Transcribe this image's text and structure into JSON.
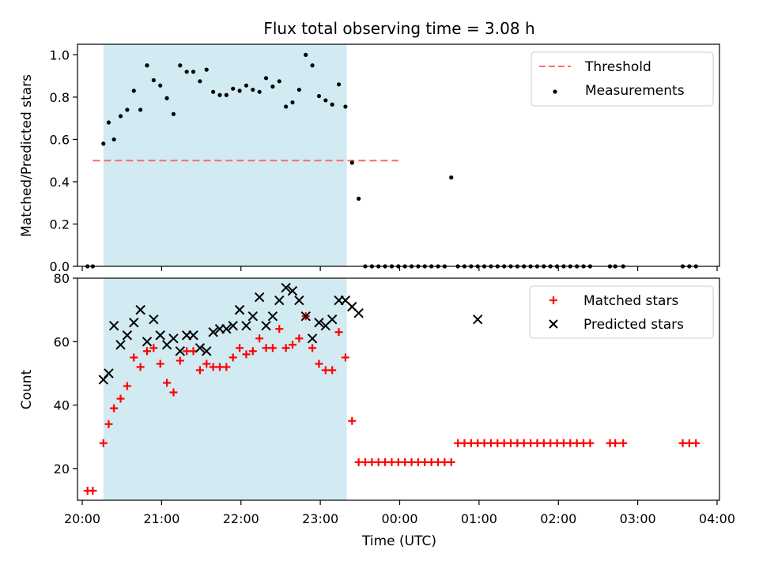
{
  "title": "Flux total observing time = 3.08 h",
  "colors": {
    "threshold": "#ff6e6e",
    "measurements": "#000000",
    "matched": "#ff0000",
    "predicted": "#000000",
    "span": "#add8e6"
  },
  "chart_data": [
    {
      "type": "scatter",
      "panel": "top",
      "title": "Flux total observing time = 3.08 h",
      "xlabel": "",
      "ylabel": "Matched/Predicted stars",
      "xlim": [
        "20:00",
        "04:00"
      ],
      "ylim": [
        0,
        1.05
      ],
      "yticks": [
        "0.0",
        "0.2",
        "0.4",
        "0.6",
        "0.8",
        "1.0"
      ],
      "shaded_span": [
        "20:16",
        "23:20"
      ],
      "legend_position": "upper right",
      "legend": [
        "Threshold",
        "Measurements"
      ],
      "threshold": {
        "name": "Threshold",
        "value": 0.5,
        "x_range": [
          "20:08",
          "23:59"
        ],
        "style": "dashed"
      },
      "series": [
        {
          "name": "Measurements",
          "marker": "dot",
          "x": [
            "20:04",
            "20:08",
            "20:16",
            "20:20",
            "20:24",
            "20:29",
            "20:34",
            "20:39",
            "20:44",
            "20:49",
            "20:54",
            "20:59",
            "21:04",
            "21:09",
            "21:14",
            "21:19",
            "21:24",
            "21:29",
            "21:34",
            "21:39",
            "21:44",
            "21:49",
            "21:54",
            "21:59",
            "22:04",
            "22:09",
            "22:14",
            "22:19",
            "22:24",
            "22:29",
            "22:34",
            "22:39",
            "22:44",
            "22:49",
            "22:54",
            "22:59",
            "23:04",
            "23:09",
            "23:14",
            "23:19",
            "23:24",
            "23:29",
            "23:34",
            "23:39",
            "23:44",
            "23:49",
            "23:54",
            "23:59",
            "00:04",
            "00:09",
            "00:14",
            "00:19",
            "00:24",
            "00:29",
            "00:34",
            "00:39",
            "00:44",
            "00:49",
            "00:54",
            "00:59",
            "01:04",
            "01:09",
            "01:14",
            "01:19",
            "01:24",
            "01:29",
            "01:34",
            "01:39",
            "01:44",
            "01:49",
            "01:54",
            "01:59",
            "02:04",
            "02:09",
            "02:14",
            "02:19",
            "02:24",
            "02:39",
            "02:43",
            "02:49",
            "03:34",
            "03:39",
            "03:44"
          ],
          "y": [
            0,
            0,
            0.58,
            0.68,
            0.6,
            0.71,
            0.74,
            0.83,
            0.74,
            0.95,
            0.88,
            0.855,
            0.795,
            0.72,
            0.95,
            0.92,
            0.92,
            0.875,
            0.93,
            0.825,
            0.81,
            0.81,
            0.84,
            0.83,
            0.855,
            0.835,
            0.825,
            0.89,
            0.85,
            0.875,
            0.755,
            0.775,
            0.835,
            1.0,
            0.95,
            0.805,
            0.785,
            0.765,
            0.86,
            0.755,
            0.49,
            0.32,
            0,
            0,
            0,
            0,
            0,
            0,
            0,
            0,
            0,
            0,
            0,
            0,
            0,
            0.42,
            0,
            0,
            0,
            0,
            0,
            0,
            0,
            0,
            0,
            0,
            0,
            0,
            0,
            0,
            0,
            0,
            0,
            0,
            0,
            0,
            0,
            0,
            0,
            0,
            0,
            0,
            0
          ]
        }
      ]
    },
    {
      "type": "scatter",
      "panel": "bottom",
      "xlabel": "Time (UTC)",
      "ylabel": "Count",
      "xlim": [
        "20:00",
        "04:00"
      ],
      "xticks": [
        "20:00",
        "21:00",
        "22:00",
        "23:00",
        "00:00",
        "01:00",
        "02:00",
        "03:00",
        "04:00"
      ],
      "ylim": [
        10,
        80
      ],
      "yticks": [
        "20",
        "40",
        "60",
        "80"
      ],
      "shaded_span": [
        "20:16",
        "23:20"
      ],
      "legend_position": "upper right",
      "legend": [
        "Matched stars",
        "Predicted stars"
      ],
      "series": [
        {
          "name": "Matched stars",
          "marker": "plus",
          "x": [
            "20:04",
            "20:08",
            "20:16",
            "20:20",
            "20:24",
            "20:29",
            "20:34",
            "20:39",
            "20:44",
            "20:49",
            "20:54",
            "20:59",
            "21:04",
            "21:09",
            "21:14",
            "21:19",
            "21:24",
            "21:29",
            "21:34",
            "21:39",
            "21:44",
            "21:49",
            "21:54",
            "21:59",
            "22:04",
            "22:09",
            "22:14",
            "22:19",
            "22:24",
            "22:29",
            "22:34",
            "22:39",
            "22:44",
            "22:49",
            "22:54",
            "22:59",
            "23:04",
            "23:09",
            "23:14",
            "23:19",
            "23:24",
            "23:29",
            "23:34",
            "23:39",
            "23:44",
            "23:49",
            "23:54",
            "23:59",
            "00:04",
            "00:09",
            "00:14",
            "00:19",
            "00:24",
            "00:29",
            "00:34",
            "00:39",
            "00:44",
            "00:49",
            "00:54",
            "00:59",
            "01:04",
            "01:09",
            "01:14",
            "01:19",
            "01:24",
            "01:29",
            "01:34",
            "01:39",
            "01:44",
            "01:49",
            "01:54",
            "01:59",
            "02:04",
            "02:09",
            "02:14",
            "02:19",
            "02:24",
            "02:39",
            "02:43",
            "02:49",
            "03:34",
            "03:39",
            "03:44"
          ],
          "y": [
            13,
            13,
            28,
            34,
            39,
            42,
            46,
            55,
            52,
            57,
            58,
            53,
            47,
            44,
            54,
            57,
            57,
            51,
            53,
            52,
            52,
            52,
            55,
            58,
            56,
            57,
            61,
            58,
            58,
            64,
            58,
            59,
            61,
            68,
            58,
            53,
            51,
            51,
            63,
            55,
            35,
            22,
            22,
            22,
            22,
            22,
            22,
            22,
            22,
            22,
            22,
            22,
            22,
            22,
            22,
            22,
            28,
            28,
            28,
            28,
            28,
            28,
            28,
            28,
            28,
            28,
            28,
            28,
            28,
            28,
            28,
            28,
            28,
            28,
            28,
            28,
            28,
            28,
            28,
            28,
            28,
            28,
            28
          ]
        },
        {
          "name": "Predicted stars",
          "marker": "x",
          "x": [
            "20:16",
            "20:20",
            "20:24",
            "20:29",
            "20:34",
            "20:39",
            "20:44",
            "20:49",
            "20:54",
            "20:59",
            "21:04",
            "21:09",
            "21:14",
            "21:19",
            "21:24",
            "21:29",
            "21:34",
            "21:39",
            "21:44",
            "21:49",
            "21:54",
            "21:59",
            "22:04",
            "22:09",
            "22:14",
            "22:19",
            "22:24",
            "22:29",
            "22:34",
            "22:39",
            "22:44",
            "22:49",
            "22:54",
            "22:59",
            "23:04",
            "23:09",
            "23:14",
            "23:19",
            "23:24",
            "23:29",
            "00:59"
          ],
          "y": [
            48,
            50,
            65,
            59,
            62,
            66,
            70,
            60,
            67,
            62,
            59,
            61,
            57,
            62,
            62,
            58,
            57,
            63,
            64,
            64,
            65,
            70,
            65,
            68,
            74,
            65,
            68,
            73,
            77,
            76,
            73,
            68,
            61,
            66,
            65,
            67,
            73,
            73,
            71,
            69,
            67
          ]
        }
      ]
    }
  ]
}
